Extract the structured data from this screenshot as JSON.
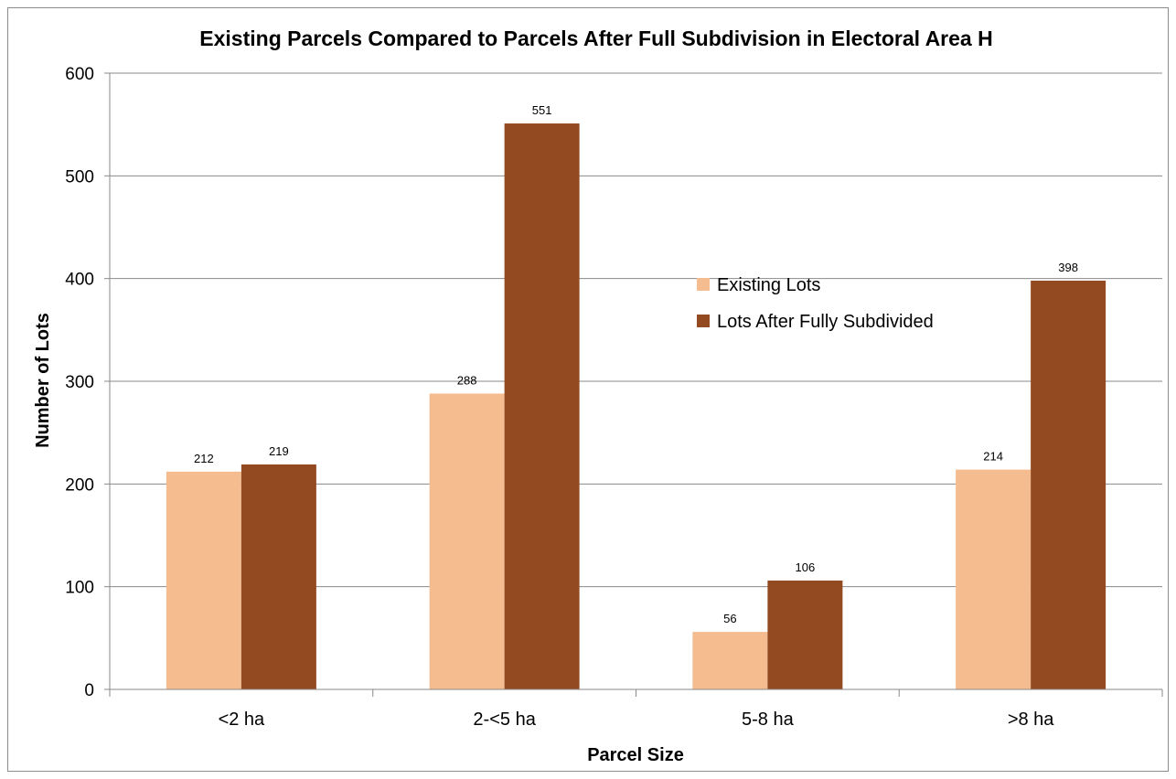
{
  "chart_data": {
    "type": "bar",
    "title": "Existing Parcels Compared to Parcels After Full Subdivision in Electoral Area H",
    "xlabel": "Parcel Size",
    "ylabel": "Number of Lots",
    "categories": [
      "<2 ha",
      "2-<5 ha",
      "5-8 ha",
      ">8 ha"
    ],
    "series": [
      {
        "name": "Existing Lots",
        "values": [
          212,
          288,
          56,
          214
        ],
        "color": "#f4bc8f"
      },
      {
        "name": "Lots After Fully Subdivided",
        "values": [
          219,
          551,
          106,
          398
        ],
        "color": "#944a20"
      }
    ],
    "ylim": [
      0,
      600
    ],
    "yticks": [
      "0",
      "100",
      "200",
      "300",
      "400",
      "500",
      "600"
    ],
    "grid": true,
    "legend_position": "right-center",
    "data_labels": true
  }
}
